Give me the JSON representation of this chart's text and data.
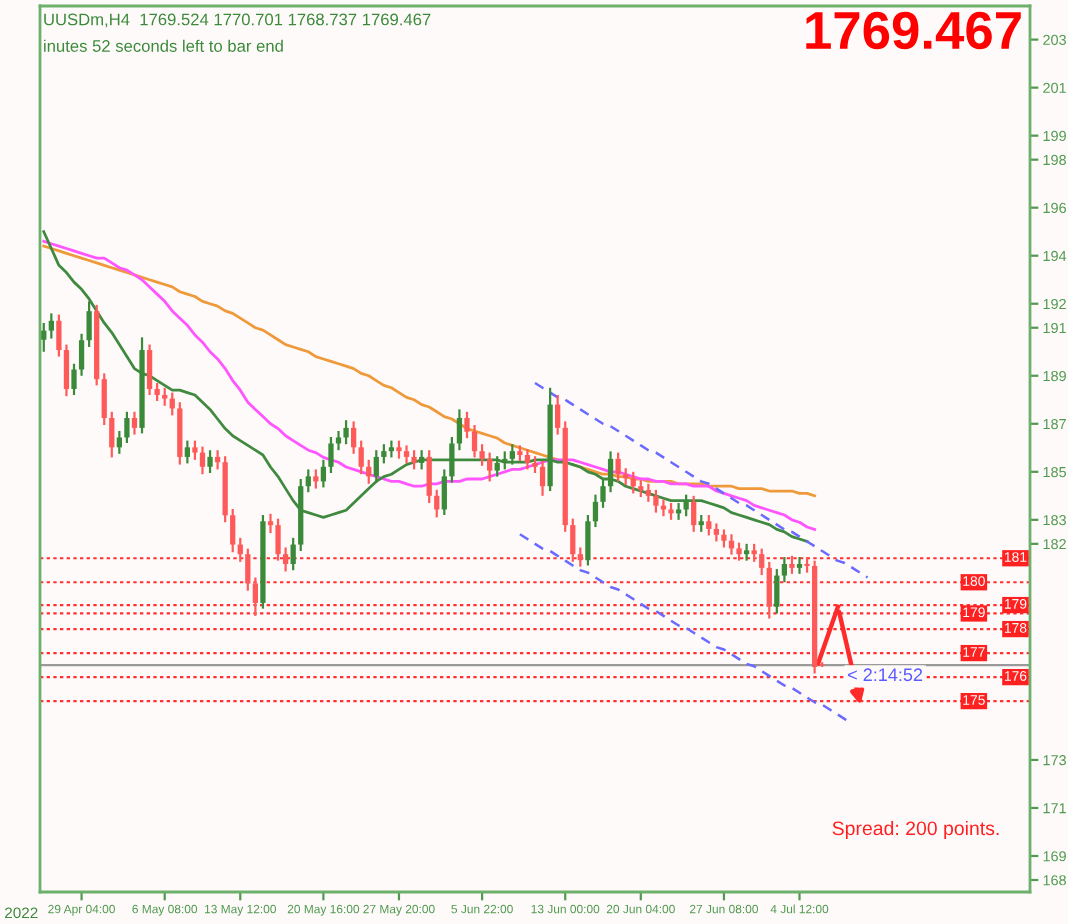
{
  "chart_data": {
    "type": "candlestick",
    "annotations": [
      "UUSDm,H4  1769.524 1770.701 1768.737 1769.467",
      "inutes 52 seconds left to bar end",
      "1769.467",
      "Spread: 200 points.",
      "2022",
      {
        "text": "< 2:14:52",
        "y": 176.9467
      }
    ],
    "categories": [
      null,
      null,
      null,
      null,
      null,
      "29 Apr 04:00",
      null,
      null,
      null,
      null,
      null,
      null,
      null,
      null,
      null,
      null,
      "6 May 08:00",
      null,
      null,
      null,
      null,
      null,
      null,
      null,
      null,
      null,
      "13 May 12:00",
      null,
      null,
      null,
      null,
      null,
      null,
      null,
      null,
      null,
      null,
      "20 May 16:00",
      null,
      null,
      null,
      null,
      null,
      null,
      null,
      null,
      null,
      "27 May 20:00",
      null,
      null,
      null,
      null,
      null,
      null,
      null,
      null,
      null,
      null,
      "5 Jun 22:00",
      null,
      null,
      null,
      null,
      null,
      null,
      null,
      null,
      null,
      null,
      "13 Jun 00:00",
      null,
      null,
      null,
      null,
      null,
      null,
      null,
      null,
      null,
      "20 Jun 04:00",
      null,
      null,
      null,
      null,
      null,
      null,
      null,
      null,
      null,
      null,
      "27 Jun 08:00",
      null,
      null,
      null,
      null,
      null,
      null,
      null,
      null,
      null,
      "4 Jul 12:00",
      null,
      null,
      null,
      null,
      null,
      null,
      null,
      null,
      null,
      null,
      null,
      null,
      null,
      null,
      null,
      null,
      null,
      null,
      null,
      null,
      null,
      null,
      null,
      null,
      null,
      null,
      null,
      null,
      null,
      null
    ],
    "ylim": [
      167.5,
      204.4
    ],
    "yticks": [
      203,
      201,
      199,
      198,
      196,
      194,
      192,
      191,
      189,
      187,
      185,
      183,
      182,
      173,
      171,
      169,
      168
    ],
    "ref_lines": [
      {
        "axis": "y",
        "value": 181.4,
        "label": "181",
        "color": "#ff3030",
        "line_style": "dotted"
      },
      {
        "axis": "y",
        "value": 180.4,
        "label": "180",
        "color": "#ff3030",
        "line_style": "dotted"
      },
      {
        "axis": "y",
        "value": 179.45,
        "label": "179",
        "color": "#ff3030",
        "line_style": "dotted"
      },
      {
        "axis": "y",
        "value": 179.1,
        "label": "179",
        "color": "#ff3030",
        "line_style": "dotted"
      },
      {
        "axis": "y",
        "value": 178.45,
        "label": "178",
        "color": "#ff3030",
        "line_style": "dotted"
      },
      {
        "axis": "y",
        "value": 177.45,
        "label": "177",
        "color": "#ff3030",
        "line_style": "dotted"
      },
      {
        "axis": "y",
        "value": 176.45,
        "label": "176",
        "color": "#ff3030",
        "line_style": "dotted"
      },
      {
        "axis": "y",
        "value": 175.45,
        "label": "175",
        "color": "#ff3030",
        "line_style": "dotted"
      },
      {
        "axis": "y",
        "value": 176.9467,
        "color": "#9a9a9a",
        "line_style": "solid"
      }
    ],
    "series": [
      {
        "type": "line",
        "color": "#ee9a3a",
        "values": [
          194.4,
          194.3,
          194.2,
          194.1,
          194.0,
          193.9,
          193.8,
          193.7,
          193.6,
          193.5,
          193.4,
          193.3,
          193.2,
          193.1,
          193.0,
          192.9,
          192.8,
          192.7,
          192.5,
          192.4,
          192.3,
          192.1,
          192.0,
          191.9,
          191.7,
          191.6,
          191.4,
          191.2,
          191.0,
          190.9,
          190.7,
          190.5,
          190.3,
          190.2,
          190.1,
          190.0,
          189.8,
          189.7,
          189.6,
          189.5,
          189.4,
          189.3,
          189.1,
          189.0,
          188.8,
          188.6,
          188.5,
          188.3,
          188.1,
          188.0,
          187.8,
          187.7,
          187.5,
          187.3,
          187.2,
          187.0,
          186.8,
          186.7,
          186.6,
          186.5,
          186.4,
          186.2,
          186.1,
          186.0,
          185.9,
          185.8,
          185.7,
          185.6,
          185.5,
          null,
          185.3,
          185.2,
          185.1,
          185.0,
          184.9,
          184.9,
          184.8,
          184.8,
          184.7,
          184.7,
          184.6,
          184.6,
          184.6,
          184.6,
          184.5,
          184.5,
          184.5,
          184.5,
          184.4,
          184.4,
          184.4,
          184.4,
          184.3,
          184.3,
          184.3,
          184.3,
          184.2,
          184.2,
          184.2,
          184.2,
          184.1,
          184.1,
          184.0,
          null,
          null,
          null,
          null,
          null,
          null,
          null,
          null,
          null,
          null,
          null,
          null,
          null,
          null,
          null,
          null,
          null,
          null,
          null,
          null,
          null,
          null,
          null,
          null,
          null,
          null,
          null,
          null
        ]
      },
      {
        "type": "line",
        "color": "#ff55ff",
        "values": [
          194.6,
          194.5,
          194.4,
          194.3,
          194.2,
          194.1,
          194.0,
          193.9,
          193.9,
          193.7,
          193.5,
          193.4,
          193.2,
          193.0,
          192.7,
          192.4,
          192.1,
          191.7,
          191.4,
          191.1,
          190.7,
          190.4,
          190.0,
          189.7,
          189.3,
          188.8,
          188.4,
          187.9,
          187.6,
          187.3,
          187.0,
          186.8,
          186.5,
          186.3,
          186.1,
          185.9,
          185.8,
          185.6,
          185.5,
          185.4,
          185.2,
          185.1,
          185.0,
          184.9,
          184.8,
          184.7,
          184.6,
          184.6,
          184.5,
          184.4,
          184.4,
          184.5,
          184.5,
          184.6,
          184.6,
          184.6,
          184.7,
          184.7,
          184.7,
          184.8,
          184.9,
          185.0,
          185.1,
          185.1,
          185.2,
          185.3,
          185.4,
          185.5,
          185.5,
          185.5,
          185.5,
          185.4,
          185.3,
          185.2,
          185.1,
          185.0,
          185.0,
          184.9,
          184.8,
          184.7,
          184.7,
          184.6,
          184.6,
          184.5,
          184.5,
          184.5,
          184.4,
          184.4,
          184.4,
          184.2,
          184.1,
          184.0,
          183.9,
          183.8,
          183.6,
          183.5,
          183.4,
          183.3,
          183.2,
          183.0,
          182.9,
          182.7,
          182.6,
          null,
          null,
          null,
          null,
          null,
          null,
          null,
          null,
          null,
          null,
          null,
          null,
          null,
          null,
          null,
          null,
          null,
          null,
          null,
          null,
          null,
          null,
          null,
          null,
          null,
          null,
          null,
          null
        ]
      },
      {
        "type": "line",
        "color": "#3f8a3f",
        "values": [
          195.0,
          194.3,
          193.6,
          193.3,
          192.9,
          192.6,
          192.2,
          191.7,
          191.2,
          190.8,
          190.3,
          189.8,
          189.3,
          189.1,
          189.0,
          188.8,
          188.6,
          188.4,
          188.4,
          188.3,
          188.2,
          187.9,
          187.6,
          187.2,
          186.8,
          186.5,
          186.3,
          186.1,
          185.9,
          185.7,
          185.2,
          184.8,
          184.3,
          183.8,
          183.4,
          183.3,
          183.2,
          183.1,
          183.2,
          183.3,
          183.4,
          183.7,
          184.0,
          184.3,
          184.6,
          184.8,
          184.9,
          185.1,
          185.3,
          185.4,
          185.5,
          185.5,
          185.5,
          185.5,
          185.5,
          185.5,
          185.5,
          185.5,
          185.5,
          185.5,
          185.5,
          185.4,
          185.4,
          185.4,
          185.4,
          185.5,
          185.5,
          185.5,
          185.4,
          185.4,
          185.3,
          185.2,
          185.0,
          184.9,
          184.7,
          184.7,
          184.6,
          184.4,
          184.3,
          184.2,
          184.1,
          184.0,
          183.9,
          183.8,
          183.8,
          183.8,
          183.8,
          183.8,
          183.7,
          183.6,
          183.5,
          183.3,
          183.2,
          183.1,
          183.0,
          182.9,
          182.8,
          182.6,
          182.5,
          182.3,
          182.2,
          182.1,
          null,
          null,
          null,
          null,
          null,
          null,
          null,
          null,
          null,
          null,
          null,
          null,
          null,
          null,
          null,
          null,
          null,
          null,
          null,
          null,
          null,
          null,
          null,
          null,
          null,
          null,
          null,
          null,
          null
        ]
      },
      {
        "type": "line",
        "color": "#6a6aff",
        "line_style": "dashed",
        "values": [
          null,
          null,
          null,
          null,
          null,
          null,
          null,
          null,
          null,
          null,
          null,
          null,
          null,
          null,
          null,
          null,
          null,
          null,
          null,
          null,
          null,
          null,
          null,
          null,
          null,
          null,
          null,
          null,
          null,
          null,
          null,
          null,
          null,
          null,
          null,
          null,
          null,
          null,
          null,
          null,
          null,
          null,
          null,
          null,
          null,
          null,
          null,
          null,
          null,
          null,
          null,
          null,
          null,
          null,
          null,
          null,
          null,
          null,
          null,
          null,
          null,
          null,
          null,
          null,
          null,
          188.7,
          188.5,
          188.3,
          188.1,
          188.0,
          187.8,
          187.6,
          187.4,
          187.2,
          187.0,
          186.9,
          186.7,
          186.5,
          186.3,
          186.1,
          185.9,
          185.8,
          185.6,
          185.4,
          185.2,
          185.0,
          184.8,
          184.6,
          184.5,
          184.3,
          184.1,
          183.9,
          183.7,
          183.6,
          183.4,
          183.2,
          183.0,
          182.8,
          182.6,
          182.5,
          182.3,
          182.1,
          181.9,
          181.7,
          181.5,
          181.3,
          181.2,
          181.0,
          180.8,
          180.6,
          null,
          null,
          null,
          null,
          null,
          null,
          null,
          null,
          null,
          null,
          null,
          null,
          null,
          null,
          null,
          null,
          null,
          null,
          null,
          null,
          null
        ]
      },
      {
        "type": "line",
        "color": "#6a6aff",
        "line_style": "dashed",
        "values": [
          null,
          null,
          null,
          null,
          null,
          null,
          null,
          null,
          null,
          null,
          null,
          null,
          null,
          null,
          null,
          null,
          null,
          null,
          null,
          null,
          null,
          null,
          null,
          null,
          null,
          null,
          null,
          null,
          null,
          null,
          null,
          null,
          null,
          null,
          null,
          null,
          null,
          null,
          null,
          null,
          null,
          null,
          null,
          null,
          null,
          null,
          null,
          null,
          null,
          null,
          null,
          null,
          null,
          null,
          null,
          null,
          null,
          null,
          null,
          null,
          null,
          null,
          null,
          182.4,
          182.2,
          182.0,
          181.8,
          181.7,
          181.5,
          181.3,
          181.1,
          180.9,
          180.8,
          180.6,
          180.4,
          180.2,
          180.1,
          179.9,
          179.7,
          179.5,
          179.3,
          179.2,
          179.0,
          178.8,
          178.6,
          178.5,
          178.3,
          178.1,
          177.9,
          177.7,
          177.6,
          177.4,
          177.2,
          177.0,
          176.9,
          176.7,
          176.5,
          176.3,
          176.1,
          176.0,
          175.8,
          175.6,
          175.4,
          175.3,
          175.1,
          174.9,
          174.7,
          174.5,
          null,
          null,
          null,
          null,
          null,
          null,
          null,
          null,
          null,
          null,
          null,
          null,
          null,
          null,
          null,
          null,
          null,
          null,
          null,
          null,
          null,
          null,
          null
        ]
      },
      {
        "type": "candlestick",
        "ohlc": [
          [
            190.5,
            191.2,
            190.0,
            190.88
          ],
          [
            190.88,
            191.6,
            190.55,
            191.29
          ],
          [
            191.29,
            191.55,
            189.8,
            190.07
          ],
          [
            190.07,
            190.3,
            188.15,
            188.45
          ],
          [
            188.45,
            189.5,
            188.2,
            189.26
          ],
          [
            189.26,
            190.75,
            189.0,
            190.48
          ],
          [
            190.48,
            192.1,
            190.2,
            191.69
          ],
          [
            191.69,
            191.95,
            188.6,
            188.86
          ],
          [
            188.86,
            189.1,
            186.95,
            187.24
          ],
          [
            187.24,
            187.5,
            185.6,
            186.02
          ],
          [
            186.02,
            186.7,
            185.75,
            186.43
          ],
          [
            186.43,
            187.5,
            186.2,
            187.24
          ],
          [
            187.24,
            187.5,
            186.55,
            186.83
          ],
          [
            186.83,
            190.6,
            186.6,
            190.07
          ],
          [
            190.07,
            190.3,
            188.2,
            188.45
          ],
          [
            188.45,
            188.7,
            187.95,
            188.2
          ],
          [
            188.2,
            188.5,
            187.75,
            188.05
          ],
          [
            188.05,
            188.3,
            187.35,
            187.64
          ],
          [
            187.64,
            187.9,
            185.3,
            185.62
          ],
          [
            185.62,
            186.3,
            185.35,
            186.02
          ],
          [
            186.02,
            186.3,
            185.5,
            185.8
          ],
          [
            185.8,
            186.05,
            184.9,
            185.21
          ],
          [
            185.21,
            185.9,
            184.95,
            185.62
          ],
          [
            185.62,
            185.9,
            185.1,
            185.4
          ],
          [
            185.4,
            185.65,
            182.9,
            183.19
          ],
          [
            183.19,
            183.45,
            181.65,
            181.97
          ],
          [
            181.97,
            182.25,
            181.25,
            181.57
          ],
          [
            181.57,
            181.8,
            180.05,
            180.35
          ],
          [
            180.35,
            180.6,
            179.0,
            179.54
          ],
          [
            179.54,
            183.2,
            179.3,
            182.94
          ],
          [
            182.94,
            183.25,
            182.45,
            182.78
          ],
          [
            182.78,
            183.05,
            181.3,
            181.57
          ],
          [
            181.57,
            181.85,
            180.85,
            181.16
          ],
          [
            181.16,
            182.25,
            180.9,
            181.97
          ],
          [
            181.97,
            184.7,
            181.7,
            184.4
          ],
          [
            184.4,
            185.1,
            184.15,
            184.81
          ],
          [
            184.81,
            185.1,
            184.3,
            184.6
          ],
          [
            184.6,
            185.5,
            184.35,
            185.21
          ],
          [
            185.21,
            186.45,
            184.95,
            186.18
          ],
          [
            186.18,
            186.7,
            185.9,
            186.43
          ],
          [
            186.43,
            187.15,
            186.15,
            186.83
          ],
          [
            186.83,
            187.1,
            185.75,
            186.02
          ],
          [
            186.02,
            186.3,
            184.9,
            185.21
          ],
          [
            185.21,
            185.5,
            184.5,
            184.81
          ],
          [
            184.81,
            185.9,
            184.55,
            185.62
          ],
          [
            185.62,
            186.15,
            185.35,
            185.86
          ],
          [
            185.86,
            186.3,
            185.6,
            186.02
          ],
          [
            186.02,
            186.3,
            185.55,
            185.86
          ],
          [
            185.86,
            186.1,
            185.35,
            185.62
          ],
          [
            185.62,
            185.9,
            185.1,
            185.37
          ],
          [
            185.37,
            185.9,
            185.1,
            185.62
          ],
          [
            185.62,
            185.9,
            183.7,
            184.0
          ],
          [
            184.0,
            184.25,
            183.1,
            183.43
          ],
          [
            183.43,
            185.1,
            183.2,
            184.81
          ],
          [
            184.81,
            186.45,
            184.55,
            186.18
          ],
          [
            186.18,
            187.6,
            185.9,
            187.24
          ],
          [
            187.24,
            187.5,
            186.4,
            186.67
          ],
          [
            186.67,
            186.95,
            185.6,
            185.86
          ],
          [
            185.86,
            186.15,
            185.25,
            185.54
          ],
          [
            185.54,
            185.8,
            184.6,
            185.05
          ],
          [
            185.05,
            185.65,
            184.8,
            185.37
          ],
          [
            185.37,
            185.85,
            185.1,
            185.54
          ],
          [
            185.54,
            186.15,
            185.3,
            185.86
          ],
          [
            185.86,
            186.1,
            185.45,
            185.7
          ],
          [
            185.7,
            185.95,
            185.1,
            185.37
          ],
          [
            185.37,
            185.65,
            184.95,
            185.21
          ],
          [
            185.21,
            185.45,
            184.0,
            184.4
          ],
          [
            184.4,
            188.5,
            184.2,
            187.8
          ],
          [
            187.8,
            188.2,
            186.55,
            186.83
          ],
          [
            186.83,
            187.1,
            182.5,
            182.78
          ],
          [
            182.78,
            183.05,
            181.25,
            181.57
          ],
          [
            181.57,
            181.85,
            181.05,
            181.32
          ],
          [
            181.32,
            183.2,
            181.1,
            182.94
          ],
          [
            182.94,
            184.05,
            182.7,
            183.75
          ],
          [
            183.75,
            184.7,
            183.5,
            184.4
          ],
          [
            184.4,
            185.85,
            184.15,
            185.54
          ],
          [
            185.54,
            185.8,
            184.6,
            184.89
          ],
          [
            184.89,
            185.15,
            184.45,
            184.73
          ],
          [
            184.73,
            185.0,
            184.1,
            184.4
          ],
          [
            184.4,
            184.65,
            183.95,
            184.24
          ],
          [
            184.24,
            184.5,
            183.75,
            184.0
          ],
          [
            184.0,
            184.25,
            183.3,
            183.59
          ],
          [
            183.59,
            183.85,
            183.15,
            183.43
          ],
          [
            183.43,
            183.7,
            183.0,
            183.27
          ],
          [
            183.27,
            183.7,
            183.0,
            183.43
          ],
          [
            183.43,
            184.05,
            183.15,
            183.75
          ],
          [
            183.75,
            184.0,
            182.5,
            182.78
          ],
          [
            182.78,
            183.2,
            182.5,
            182.94
          ],
          [
            182.94,
            183.2,
            182.35,
            182.62
          ],
          [
            182.62,
            182.85,
            182.1,
            182.38
          ],
          [
            182.38,
            182.6,
            181.85,
            182.13
          ],
          [
            182.13,
            182.4,
            181.55,
            181.81
          ],
          [
            181.81,
            182.05,
            181.3,
            181.57
          ],
          [
            181.57,
            182.0,
            181.3,
            181.73
          ],
          [
            181.73,
            182.0,
            181.25,
            181.57
          ],
          [
            181.57,
            181.8,
            180.7,
            181.0
          ],
          [
            181.0,
            181.25,
            178.89,
            179.38
          ],
          [
            179.38,
            180.95,
            179.1,
            180.68
          ],
          [
            180.68,
            181.45,
            180.4,
            181.16
          ],
          [
            181.16,
            181.5,
            180.75,
            181.0
          ],
          [
            181.0,
            181.45,
            180.75,
            181.16
          ],
          [
            181.16,
            181.45,
            180.8,
            181.08
          ],
          [
            181.08,
            181.3,
            176.6,
            176.87
          ],
          [
            176.9524,
            177.0701,
            176.8737,
            176.9467
          ],
          null,
          null,
          null,
          null,
          null,
          null,
          null,
          null,
          null,
          null,
          null,
          null,
          null,
          null,
          null,
          null,
          null,
          null,
          null,
          null,
          null,
          null,
          null,
          null,
          null,
          null,
          null
        ],
        "colors": [
          "#3a8a3a",
          "#3a8a3a",
          "#ff5a5a",
          "#ff5a5a",
          "#3a8a3a",
          "#3a8a3a",
          "#3a8a3a",
          "#ff5a5a",
          "#ff5a5a",
          "#ff5a5a",
          "#3a8a3a",
          "#3a8a3a",
          "#ff5a5a",
          "#3a8a3a",
          "#ff5a5a",
          "#ff5a5a",
          "#ff5a5a",
          "#ff5a5a",
          "#ff5a5a",
          "#3a8a3a",
          "#ff5a5a",
          "#ff5a5a",
          "#3a8a3a",
          "#ff5a5a",
          "#ff5a5a",
          "#ff5a5a",
          "#ff5a5a",
          "#ff5a5a",
          "#ff5a5a",
          "#3a8a3a",
          "#ff5a5a",
          "#ff5a5a",
          "#ff5a5a",
          "#3a8a3a",
          "#3a8a3a",
          "#3a8a3a",
          "#ff5a5a",
          "#3a8a3a",
          "#3a8a3a",
          "#3a8a3a",
          "#3a8a3a",
          "#ff5a5a",
          "#ff5a5a",
          "#ff5a5a",
          "#3a8a3a",
          "#3a8a3a",
          "#3a8a3a",
          "#ff5a5a",
          "#ff5a5a",
          "#ff5a5a",
          "#3a8a3a",
          "#ff5a5a",
          "#ff5a5a",
          "#3a8a3a",
          "#3a8a3a",
          "#3a8a3a",
          "#ff5a5a",
          "#ff5a5a",
          "#ff5a5a",
          "#ff5a5a",
          "#3a8a3a",
          "#3a8a3a",
          "#3a8a3a",
          "#ff5a5a",
          "#ff5a5a",
          "#ff5a5a",
          "#ff5a5a",
          "#3a8a3a",
          "#ff5a5a",
          "#ff5a5a",
          "#ff5a5a",
          "#ff5a5a",
          "#3a8a3a",
          "#3a8a3a",
          "#3a8a3a",
          "#3a8a3a",
          "#ff5a5a",
          "#ff5a5a",
          "#ff5a5a",
          "#ff5a5a",
          "#ff5a5a",
          "#ff5a5a",
          "#ff5a5a",
          "#ff5a5a",
          "#3a8a3a",
          "#3a8a3a",
          "#ff5a5a",
          "#3a8a3a",
          "#ff5a5a",
          "#ff5a5a",
          "#ff5a5a",
          "#ff5a5a",
          "#ff5a5a",
          "#3a8a3a",
          "#ff5a5a",
          "#ff5a5a",
          "#ff5a5a",
          "#3a8a3a",
          "#3a8a3a",
          "#ff5a5a",
          "#3a8a3a",
          "#ff5a5a",
          "#ff5a5a",
          "#ff5a5a",
          null,
          null,
          null,
          null,
          null,
          null,
          null,
          null,
          null,
          null,
          null,
          null,
          null,
          null,
          null,
          null,
          null,
          null,
          null,
          null,
          null,
          null,
          null,
          null,
          null,
          null,
          null
        ]
      }
    ]
  }
}
